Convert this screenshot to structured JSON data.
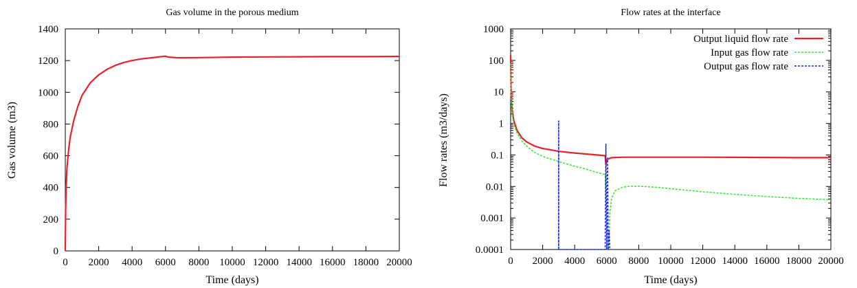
{
  "chart_data": [
    {
      "type": "line",
      "title": "Gas volume in the porous medium",
      "xlabel": "Time (days)",
      "ylabel": "Gas volume (m3)",
      "xlim": [
        0,
        20000
      ],
      "ylim": [
        0,
        1400
      ],
      "x_ticks": [
        0,
        2000,
        4000,
        6000,
        8000,
        10000,
        12000,
        14000,
        16000,
        18000,
        20000
      ],
      "y_ticks": [
        0,
        200,
        400,
        600,
        800,
        1000,
        1200,
        1400
      ],
      "grid": false,
      "series": [
        {
          "color": "#e8202a",
          "dash": "solid",
          "x": [
            0,
            20,
            50,
            100,
            200,
            300,
            500,
            750,
            1000,
            1500,
            2000,
            2500,
            3000,
            3500,
            4000,
            4500,
            5000,
            5500,
            6000,
            6050,
            6200,
            6600,
            7000,
            8000,
            10000,
            12000,
            14000,
            16000,
            18000,
            20000
          ],
          "y": [
            0,
            250,
            400,
            520,
            640,
            720,
            820,
            910,
            980,
            1060,
            1110,
            1145,
            1170,
            1188,
            1200,
            1210,
            1216,
            1222,
            1228,
            1225,
            1222,
            1219,
            1218,
            1219,
            1222,
            1223,
            1224,
            1225,
            1225,
            1226
          ]
        }
      ]
    },
    {
      "type": "line",
      "title": "Flow rates at the interface",
      "xlabel": "Time (days)",
      "ylabel": "Flow rates (m3/days)",
      "xlim": [
        0,
        20000
      ],
      "ylim": [
        0.0001,
        1000
      ],
      "yscale": "log",
      "x_ticks": [
        0,
        2000,
        4000,
        6000,
        8000,
        10000,
        12000,
        14000,
        16000,
        18000,
        20000
      ],
      "y_ticks": [
        0.0001,
        0.001,
        0.01,
        0.1,
        1,
        10,
        100,
        1000
      ],
      "y_tick_labels": [
        "0.0001",
        "0.001",
        "0.01",
        "0.1",
        "1",
        "10",
        "100",
        "1000"
      ],
      "grid": false,
      "legend_position": "top-right",
      "series": [
        {
          "name": "Output liquid flow rate",
          "color": "#e8202a",
          "dash": "solid",
          "x": [
            0,
            20,
            50,
            100,
            200,
            400,
            700,
            1000,
            1500,
            2000,
            2500,
            3000,
            4000,
            5000,
            5900,
            5950,
            6000,
            6100,
            6300,
            7000,
            8000,
            10000,
            12000,
            14000,
            16000,
            18000,
            20000
          ],
          "y": [
            150,
            15,
            5,
            2.5,
            1.2,
            0.6,
            0.35,
            0.26,
            0.19,
            0.16,
            0.145,
            0.13,
            0.115,
            0.104,
            0.095,
            0.05,
            0.065,
            0.075,
            0.082,
            0.085,
            0.085,
            0.085,
            0.085,
            0.084,
            0.083,
            0.082,
            0.082
          ]
        },
        {
          "name": "Input gas flow rate",
          "color": "#33e833",
          "dash": "dashed",
          "x": [
            0,
            20,
            50,
            100,
            200,
            400,
            700,
            1000,
            1500,
            2000,
            2500,
            3000,
            3500,
            4000,
            4500,
            5000,
            5500,
            5900,
            6050,
            6100,
            6150,
            6200,
            6300,
            6500,
            7000,
            7500,
            8000,
            9000,
            10000,
            12000,
            14000,
            16000,
            18000,
            20000
          ],
          "y": [
            80,
            10,
            3.5,
            1.8,
            0.9,
            0.5,
            0.28,
            0.19,
            0.12,
            0.09,
            0.074,
            0.062,
            0.052,
            0.044,
            0.038,
            0.032,
            0.027,
            0.024,
            0.0001,
            0.0001,
            0.0002,
            0.0015,
            0.004,
            0.0072,
            0.0095,
            0.0102,
            0.0102,
            0.0095,
            0.0085,
            0.0068,
            0.0056,
            0.0048,
            0.0042,
            0.0038
          ]
        },
        {
          "name": "Output gas flow rate",
          "color": "#1f2bdc",
          "dash": "dashed",
          "x": [
            2995,
            3000,
            3005,
            5900,
            5950,
            6000,
            6050,
            6100,
            6150,
            6200
          ],
          "y": [
            0.0001,
            1.2,
            0.0001,
            0.0001,
            0.22,
            0.0001,
            0.08,
            0.0001,
            0.0004,
            0.0001
          ]
        }
      ]
    }
  ]
}
